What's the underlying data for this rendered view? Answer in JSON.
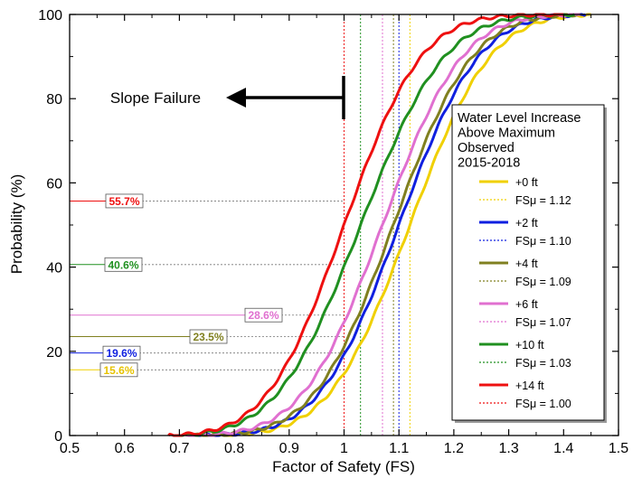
{
  "chart_data": {
    "type": "line",
    "title": "",
    "xlabel": "Factor of Safety (FS)",
    "ylabel": "Probability (%)",
    "xlim": [
      0.5,
      1.5
    ],
    "ylim": [
      0,
      100
    ],
    "xticks": [
      "0.5",
      "0.6",
      "0.7",
      "0.8",
      "0.9",
      "1",
      "1.1",
      "1.2",
      "1.3",
      "1.4",
      "1.5"
    ],
    "yticks": [
      "0",
      "20",
      "40",
      "60",
      "80",
      "100"
    ],
    "grid": false,
    "annotation": {
      "text": "Slope Failure",
      "fs": 1.0
    },
    "legend": {
      "title_lines": [
        "Water Level Increase",
        "Above Maximum",
        "Observed",
        "2015-2018"
      ],
      "placement": "right"
    },
    "series": [
      {
        "name": "+0 ft",
        "mean_label": "FSμ = 1.12",
        "fs_mean": 1.12,
        "sd": 0.115,
        "x_min": 0.73,
        "x_max": 1.45,
        "p_at_fs1": 15.6,
        "p_label": "15.6%",
        "color": "#f0d000",
        "label_color": "#e6c200"
      },
      {
        "name": "+2 ft",
        "mean_label": "FSμ = 1.10",
        "fs_mean": 1.1,
        "sd": 0.114,
        "x_min": 0.72,
        "x_max": 1.44,
        "p_at_fs1": 19.6,
        "p_label": "19.6%",
        "color": "#1020e0",
        "label_color": "#1020e0"
      },
      {
        "name": "+4 ft",
        "mean_label": "FSμ = 1.09",
        "fs_mean": 1.09,
        "sd": 0.113,
        "x_min": 0.72,
        "x_max": 1.43,
        "p_at_fs1": 23.5,
        "p_label": "23.5%",
        "color": "#808020",
        "label_color": "#808020"
      },
      {
        "name": "+6 ft",
        "mean_label": "FSμ = 1.07",
        "fs_mean": 1.07,
        "sd": 0.114,
        "x_min": 0.71,
        "x_max": 1.43,
        "p_at_fs1": 28.6,
        "p_label": "28.6%",
        "color": "#e070d0",
        "label_color": "#e070d0"
      },
      {
        "name": "+10 ft",
        "mean_label": "FSμ = 1.03",
        "fs_mean": 1.03,
        "sd": 0.12,
        "x_min": 0.7,
        "x_max": 1.42,
        "p_at_fs1": 40.6,
        "p_label": "40.6%",
        "color": "#209020",
        "label_color": "#209020"
      },
      {
        "name": "+14 ft",
        "mean_label": "FSμ = 1.00",
        "fs_mean": 1.0,
        "sd": 0.11,
        "x_min": 0.68,
        "x_max": 1.4,
        "p_at_fs1": 55.7,
        "p_label": "55.7%",
        "color": "#ee1010",
        "label_color": "#ee1010"
      }
    ]
  }
}
